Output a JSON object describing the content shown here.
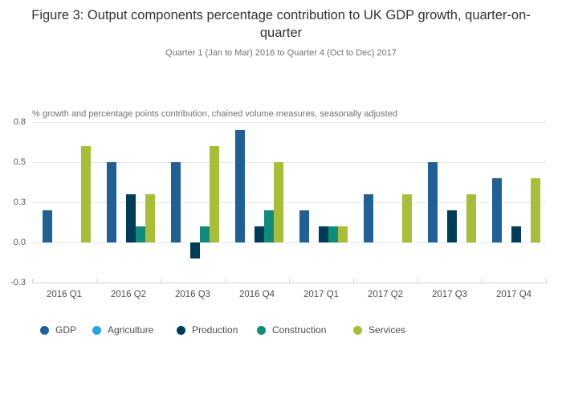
{
  "figure": {
    "title": "Figure 3: Output components percentage contribution to UK GDP growth, quarter-on-quarter",
    "subtitle": "Quarter 1 (Jan to Mar) 2016 to Quarter 4 (Oct to Dec) 2017",
    "axis_note": "% growth and percentage points contribution, chained volume measures, seasonally adjusted"
  },
  "chart_data": {
    "type": "bar",
    "categories": [
      "2016 Q1",
      "2016 Q2",
      "2016 Q3",
      "2016 Q4",
      "2017 Q1",
      "2017 Q2",
      "2017 Q3",
      "2017 Q4"
    ],
    "series": [
      {
        "name": "GDP",
        "color": "#206095",
        "values": [
          0.2,
          0.5,
          0.5,
          0.7,
          0.2,
          0.3,
          0.5,
          0.4
        ]
      },
      {
        "name": "Agriculture",
        "color": "#29A5DD",
        "values": [
          0,
          0,
          0,
          0,
          0,
          0,
          0,
          0
        ]
      },
      {
        "name": "Production",
        "color": "#003C57",
        "values": [
          0,
          0.3,
          -0.1,
          0.1,
          0.1,
          0,
          0.2,
          0.1
        ]
      },
      {
        "name": "Construction",
        "color": "#118C7B",
        "values": [
          0,
          0.1,
          0.1,
          0.2,
          0.1,
          0,
          0,
          0
        ]
      },
      {
        "name": "Services",
        "color": "#A8BD3A",
        "values": [
          0.6,
          0.3,
          0.6,
          0.5,
          0.1,
          0.3,
          0.3,
          0.4
        ]
      }
    ],
    "y_ticks": [
      {
        "value": 0.75,
        "label": "0.8"
      },
      {
        "value": 0.5,
        "label": "0.5"
      },
      {
        "value": 0.25,
        "label": "0.3"
      },
      {
        "value": 0,
        "label": "0.0"
      },
      {
        "value": -0.25,
        "label": "-0.3"
      }
    ],
    "ylim": [
      -0.25,
      0.75
    ],
    "xlabel": "",
    "ylabel": "",
    "grid": true,
    "legend_position": "bottom"
  }
}
